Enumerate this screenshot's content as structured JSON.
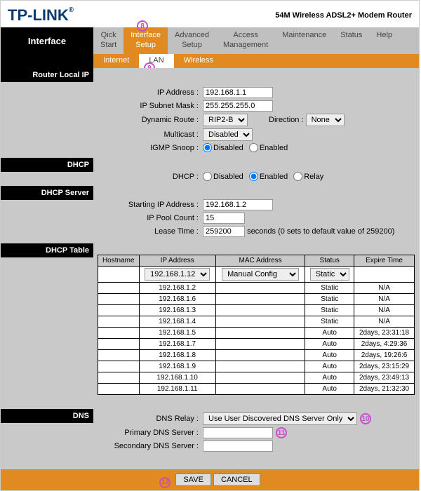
{
  "brand": "TP-LINK",
  "product": "54M Wireless ADSL2+ Modem Router",
  "interface_label": "Interface",
  "topnav": [
    {
      "line1": "Qick",
      "line2": "Start"
    },
    {
      "line1": "Interface",
      "line2": "Setup"
    },
    {
      "line1": "Advanced",
      "line2": "Setup"
    },
    {
      "line1": "Access",
      "line2": "Management"
    },
    {
      "line1": "Maintenance",
      "line2": ""
    },
    {
      "line1": "Status",
      "line2": ""
    },
    {
      "line1": "Help",
      "line2": ""
    }
  ],
  "topnav_active": 1,
  "subnav": [
    "Internet",
    "LAN",
    "Wireless"
  ],
  "subnav_active": 1,
  "sections": {
    "router_local_ip": "Router Local IP",
    "dhcp": "DHCP",
    "dhcp_server": "DHCP Server",
    "dhcp_table": "DHCP Table",
    "dns": "DNS"
  },
  "labels": {
    "ip_address": "IP Address :",
    "subnet": "IP Subnet Mask :",
    "dynamic_route": "Dynamic Route :",
    "direction": "Direction :",
    "multicast": "Multicast :",
    "igmp": "IGMP Snoop :",
    "dhcp_mode": "DHCP :",
    "start_ip": "Starting IP Address :",
    "pool": "IP Pool Count :",
    "lease": "Lease Time :",
    "lease_suffix": "seconds   (0 sets to default value of 259200)",
    "dns_relay": "DNS Relay :",
    "primary_dns": "Primary DNS Server :",
    "secondary_dns": "Secondary DNS Server :"
  },
  "values": {
    "ip_address": "192.168.1.1",
    "subnet": "255.255.255.0",
    "dynamic_route": "RIP2-B",
    "direction": "None",
    "multicast": "Disabled",
    "igmp": "disabled",
    "dhcp_mode": "enabled",
    "start_ip": "192.168.1.2",
    "pool": "15",
    "lease": "259200",
    "dns_relay": "Use User Discovered DNS Server Only",
    "primary_dns": "",
    "secondary_dns": "",
    "table_ip_select": "192.168.1.12",
    "table_mac_select": "Manual Config",
    "table_status_select": "Static"
  },
  "radio_options": {
    "igmp": [
      "Disabled",
      "Enabled"
    ],
    "dhcp_mode": [
      "Disabled",
      "Enabled",
      "Relay"
    ]
  },
  "dhcp_table": {
    "headers": [
      "Hostname",
      "IP Address",
      "MAC Address",
      "Status",
      "Expire Time"
    ],
    "rows": [
      {
        "host": "",
        "ip": "192.168.1.2",
        "mac": "",
        "status": "Static",
        "expire": "N/A"
      },
      {
        "host": "",
        "ip": "192.168.1.6",
        "mac": "",
        "status": "Static",
        "expire": "N/A"
      },
      {
        "host": "",
        "ip": "192.168.1.3",
        "mac": "",
        "status": "Static",
        "expire": "N/A"
      },
      {
        "host": "",
        "ip": "192.168.1.4",
        "mac": "",
        "status": "Static",
        "expire": "N/A"
      },
      {
        "host": "",
        "ip": "192.168.1.5",
        "mac": "",
        "status": "Auto",
        "expire": "2days, 23:31:18"
      },
      {
        "host": "",
        "ip": "192.168.1.7",
        "mac": "",
        "status": "Auto",
        "expire": "2days, 4:29:36"
      },
      {
        "host": "",
        "ip": "192.168.1.8",
        "mac": "",
        "status": "Auto",
        "expire": "2days, 19:26:6"
      },
      {
        "host": "",
        "ip": "192.168.1.9",
        "mac": "",
        "status": "Auto",
        "expire": "2days, 23:15:29"
      },
      {
        "host": "",
        "ip": "192.168.1.10",
        "mac": "",
        "status": "Auto",
        "expire": "2days, 23:49:13"
      },
      {
        "host": "",
        "ip": "192.168.1.11",
        "mac": "",
        "status": "Auto",
        "expire": "2days, 21:32:30"
      }
    ]
  },
  "buttons": {
    "save": "SAVE",
    "cancel": "CANCEL"
  },
  "annotations": [
    "8",
    "9",
    "10",
    "11",
    "12"
  ],
  "colors": {
    "orange": "#e08a1f",
    "black": "#000000",
    "gray_bg": "#c9c9c9",
    "annot": "#c84fc8",
    "logo": "#0b3b6f"
  }
}
